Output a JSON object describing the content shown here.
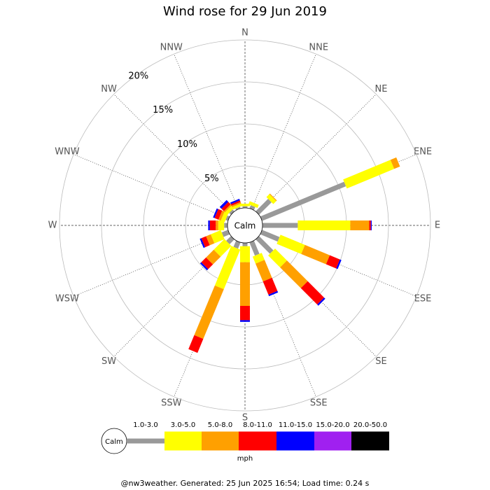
{
  "chart_data": {
    "type": "windrose",
    "title": "Wind rose for 29 Jun 2019",
    "categories": [
      "N",
      "NNE",
      "NE",
      "ENE",
      "E",
      "ESE",
      "SE",
      "SSE",
      "S",
      "SSW",
      "SW",
      "WSW",
      "W",
      "WNW",
      "NW",
      "NNW"
    ],
    "series": [
      {
        "name": "1.0-3.0",
        "color": "#999999",
        "values": [
          0.2,
          0.4,
          2.1,
          10.8,
          4.2,
          2.25,
          2.4,
          1.7,
          0.4,
          0.8,
          0.8,
          0.8,
          0.4,
          0.3,
          0.3,
          0.2
        ]
      },
      {
        "name": "3.0-5.0",
        "color": "#ffff00",
        "values": [
          0.3,
          0.4,
          0.5,
          6.1,
          6.25,
          3.15,
          2.0,
          0.9,
          1.9,
          5.1,
          1.8,
          1.3,
          0.7,
          0.5,
          0.4,
          0.3
        ]
      },
      {
        "name": "5.0-8.0",
        "color": "#ffa000",
        "values": [
          0,
          0,
          0.1,
          0.75,
          2.25,
          3.2,
          3.5,
          2.3,
          5.2,
          6.4,
          1.3,
          0.6,
          0.3,
          0.3,
          0.2,
          0.2
        ]
      },
      {
        "name": "8.0-11.0",
        "color": "#ff0000",
        "values": [
          0,
          0,
          0,
          0,
          0.2,
          1.3,
          2.75,
          1.7,
          1.7,
          1.8,
          0.8,
          0.6,
          0.7,
          0.5,
          0.4,
          0.2
        ]
      },
      {
        "name": "11.0-15.0",
        "color": "#0000ff",
        "values": [
          0,
          0,
          0,
          0,
          0.1,
          0.2,
          0.2,
          0.2,
          0.2,
          0,
          0.2,
          0.2,
          0.2,
          0.2,
          0.3,
          0.2
        ]
      },
      {
        "name": "15.0-20.0",
        "color": "#a020f0",
        "values": [
          0,
          0,
          0,
          0,
          0,
          0,
          0,
          0,
          0,
          0,
          0,
          0,
          0,
          0,
          0,
          0
        ]
      },
      {
        "name": "20.0-50.0",
        "color": "#000000",
        "values": [
          0,
          0,
          0,
          0,
          0,
          0,
          0,
          0,
          0,
          0,
          0,
          0,
          0,
          0,
          0,
          0
        ]
      }
    ],
    "rlim": [
      0,
      20
    ],
    "rticks": [
      {
        "value": 5,
        "label": "5%"
      },
      {
        "value": 10,
        "label": "10%"
      },
      {
        "value": 15,
        "label": "15%"
      },
      {
        "value": 20,
        "label": "20%"
      }
    ],
    "calm_label": "Calm",
    "units": "mph",
    "footer": "@nw3weather. Generated: 25 Jun 2025 16:54; Load time: 0.24 s"
  }
}
